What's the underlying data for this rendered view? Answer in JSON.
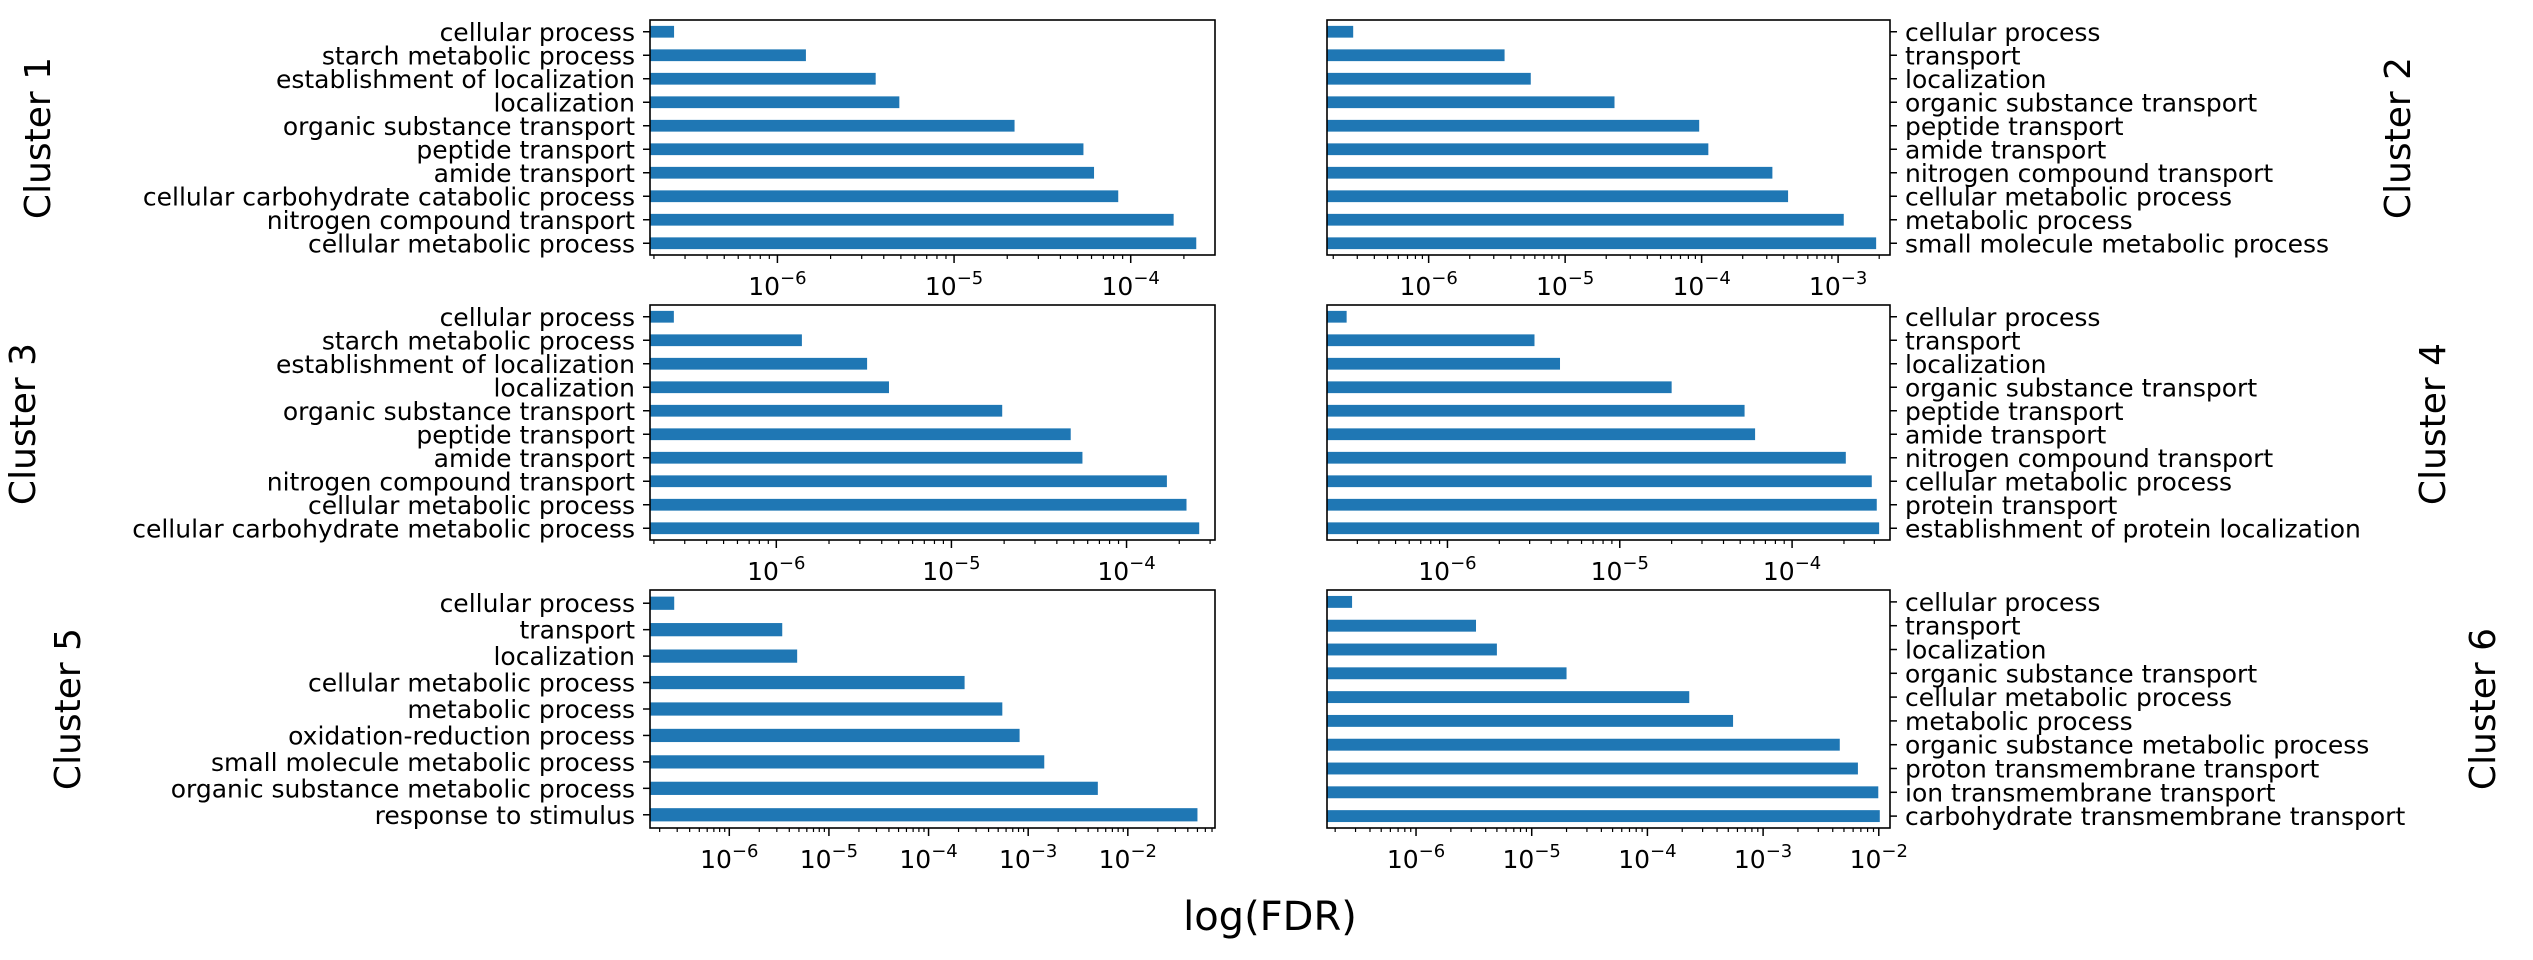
{
  "figure": {
    "xlabel": "log(FDR)"
  },
  "style": {
    "bar_color": "#1f77b4",
    "axis_color": "#000000",
    "background": "#ffffff"
  },
  "chart_data": [
    {
      "type": "bar",
      "orientation": "horizontal",
      "x_scale": "log",
      "title": "Cluster 1",
      "categories": [
        "cellular process",
        "starch metabolic process",
        "establishment of localization",
        "localization",
        "organic substance transport",
        "peptide transport",
        "amide transport",
        "cellular carbohydrate catabolic process",
        "nitrogen compound transport",
        "cellular metabolic process"
      ],
      "values": [
        2.6e-07,
        1.45e-06,
        3.6e-06,
        4.9e-06,
        2.2e-05,
        5.4e-05,
        6.2e-05,
        8.5e-05,
        0.000175,
        0.000235
      ],
      "xlim": [
        1.9e-07,
        0.0003
      ],
      "xticks": [
        "10^-6",
        "10^-5",
        "10^-4"
      ]
    },
    {
      "type": "bar",
      "orientation": "horizontal",
      "x_scale": "log",
      "title": "Cluster 2",
      "categories": [
        "cellular process",
        "transport",
        "localization",
        "organic substance transport",
        "peptide transport",
        "amide transport",
        "nitrogen compound transport",
        "cellular metabolic process",
        "metabolic process",
        "small molecule metabolic process"
      ],
      "values": [
        2.8e-07,
        3.6e-06,
        5.6e-06,
        2.3e-05,
        9.6e-05,
        0.000112,
        0.00033,
        0.00043,
        0.0011,
        0.0019
      ],
      "xlim": [
        1.8e-07,
        0.0024
      ],
      "xticks": [
        "10^-6",
        "10^-5",
        "10^-4",
        "10^-3"
      ]
    },
    {
      "type": "bar",
      "orientation": "horizontal",
      "x_scale": "log",
      "title": "Cluster 3",
      "categories": [
        "cellular process",
        "starch metabolic process",
        "establishment of localization",
        "localization",
        "organic substance transport",
        "peptide transport",
        "amide transport",
        "nitrogen compound transport",
        "cellular metabolic process",
        "cellular carbohydrate metabolic process"
      ],
      "values": [
        2.6e-07,
        1.4e-06,
        3.3e-06,
        4.4e-06,
        1.95e-05,
        4.8e-05,
        5.6e-05,
        0.00017,
        0.00022,
        0.00026
      ],
      "xlim": [
        1.9e-07,
        0.00032
      ],
      "xticks": [
        "10^-6",
        "10^-5",
        "10^-4"
      ]
    },
    {
      "type": "bar",
      "orientation": "horizontal",
      "x_scale": "log",
      "title": "Cluster 4",
      "categories": [
        "cellular process",
        "transport",
        "localization",
        "organic substance transport",
        "peptide transport",
        "amide transport",
        "nitrogen compound transport",
        "cellular metabolic process",
        "protein transport",
        "establishment of protein localization"
      ],
      "values": [
        2.6e-07,
        3.2e-06,
        4.5e-06,
        2e-05,
        5.3e-05,
        6.1e-05,
        0.000205,
        0.00029,
        0.00031,
        0.00032
      ],
      "xlim": [
        2e-07,
        0.00037
      ],
      "xticks": [
        "10^-6",
        "10^-5",
        "10^-4"
      ]
    },
    {
      "type": "bar",
      "orientation": "horizontal",
      "x_scale": "log",
      "title": "Cluster 5",
      "categories": [
        "cellular process",
        "transport",
        "localization",
        "cellular metabolic process",
        "metabolic process",
        "oxidation-reduction process",
        "small molecule metabolic process",
        "organic substance metabolic process",
        "response to stimulus"
      ],
      "values": [
        2.8e-07,
        3.4e-06,
        4.8e-06,
        0.00023,
        0.00055,
        0.00082,
        0.00145,
        0.005,
        0.05
      ],
      "xlim": [
        1.6e-07,
        0.075
      ],
      "xticks": [
        "10^-6",
        "10^-5",
        "10^-4",
        "10^-3",
        "10^-2"
      ]
    },
    {
      "type": "bar",
      "orientation": "horizontal",
      "x_scale": "log",
      "title": "Cluster 6",
      "categories": [
        "cellular process",
        "transport",
        "localization",
        "organic substance transport",
        "cellular metabolic process",
        "metabolic process",
        "organic substance metabolic process",
        "proton transmembrane transport",
        "ion transmembrane transport",
        "carbohydrate transmembrane transport"
      ],
      "values": [
        2.8e-07,
        3.3e-06,
        5e-06,
        2e-05,
        0.00023,
        0.00055,
        0.0046,
        0.0066,
        0.0099,
        0.0102
      ],
      "xlim": [
        1.7e-07,
        0.0125
      ],
      "xticks": [
        "10^-6",
        "10^-5",
        "10^-4",
        "10^-3",
        "10^-2"
      ]
    }
  ]
}
